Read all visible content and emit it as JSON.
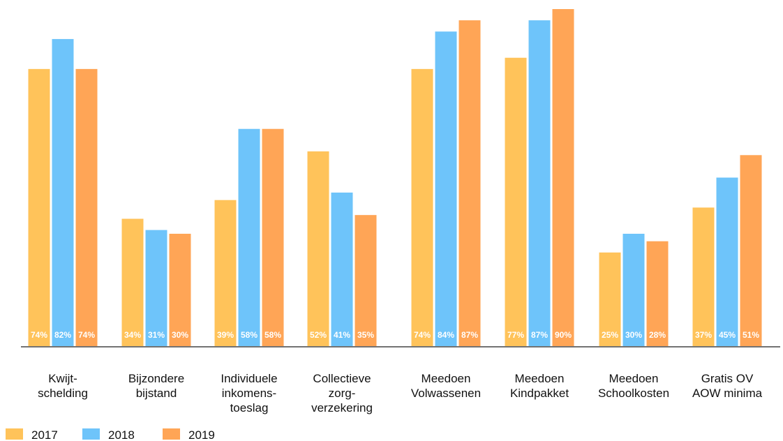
{
  "chart_data": {
    "type": "bar",
    "categories": [
      "Kwijt-\nschelding",
      "Bijzondere\nbijstand",
      "Individuele\ninkomens-\ntoeslag",
      "Collectieve\nzorg-\nverzekering",
      "Meedoen\nVolwassenen",
      "Meedoen\nKindpakket",
      "Meedoen\nSchoolkosten",
      "Gratis OV\nAOW minima"
    ],
    "series": [
      {
        "name": "2017",
        "color": "#ffc35a",
        "values": [
          74,
          34,
          39,
          52,
          74,
          77,
          25,
          37
        ],
        "value_labels": [
          "74%",
          "34%",
          "39%",
          "52%",
          "74%",
          "77%",
          "25%",
          "37%"
        ]
      },
      {
        "name": "2018",
        "color": "#6ec4fa",
        "values": [
          82,
          31,
          58,
          41,
          84,
          87,
          30,
          45
        ],
        "value_labels": [
          "82%",
          "31%",
          "58%",
          "41%",
          "84%",
          "87%",
          "30%",
          "45%"
        ]
      },
      {
        "name": "2019",
        "color": "#ffa556",
        "values": [
          74,
          30,
          58,
          35,
          87,
          90,
          28,
          51
        ],
        "value_labels": [
          "74%",
          "30%",
          "58%",
          "35%",
          "87%",
          "90%",
          "28%",
          "51%"
        ]
      }
    ]
  }
}
